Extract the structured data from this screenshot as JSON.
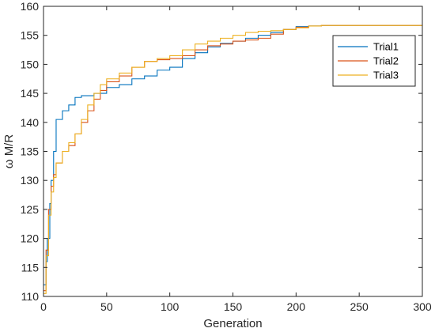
{
  "chart_data": {
    "type": "line",
    "title": "",
    "xlabel": "Generation",
    "ylabel": "ω M/R",
    "xlim": [
      0,
      300
    ],
    "ylim": [
      110,
      160
    ],
    "xticks": [
      0,
      50,
      100,
      150,
      200,
      250,
      300
    ],
    "yticks": [
      110,
      115,
      120,
      125,
      130,
      135,
      140,
      145,
      150,
      155,
      160
    ],
    "grid": false,
    "legend_position": "top-right",
    "series": [
      {
        "name": "Trial1",
        "color": "#0072BD",
        "x": [
          0,
          2,
          3,
          5,
          6,
          8,
          10,
          15,
          20,
          25,
          30,
          40,
          50,
          60,
          70,
          80,
          90,
          100,
          110,
          120,
          130,
          140,
          150,
          160,
          170,
          180,
          190,
          200,
          210,
          220,
          250,
          300
        ],
        "y": [
          112,
          116,
          120,
          126,
          130,
          135,
          140.5,
          142,
          143,
          144.3,
          144.6,
          145,
          146,
          146.5,
          147.5,
          148,
          149,
          149.5,
          151,
          152,
          153,
          153.6,
          154,
          154.5,
          155,
          155.5,
          156,
          156.5,
          156.6,
          156.7,
          156.7,
          156.7
        ]
      },
      {
        "name": "Trial2",
        "color": "#D95319",
        "x": [
          0,
          2,
          4,
          6,
          8,
          10,
          15,
          20,
          25,
          30,
          35,
          40,
          45,
          50,
          60,
          70,
          80,
          90,
          100,
          110,
          120,
          130,
          140,
          150,
          160,
          170,
          180,
          190,
          200,
          210,
          220,
          250,
          300
        ],
        "y": [
          111,
          118,
          125,
          129,
          131,
          133,
          135,
          136,
          138,
          140,
          142,
          144,
          145.5,
          147,
          148,
          149.5,
          150.5,
          150.8,
          151,
          151.5,
          152.5,
          153.2,
          153.5,
          154,
          154.2,
          154.5,
          155.2,
          156,
          156.4,
          156.6,
          156.7,
          156.7,
          156.7
        ]
      },
      {
        "name": "Trial3",
        "color": "#EDB120",
        "x": [
          0,
          2,
          4,
          6,
          8,
          10,
          15,
          20,
          25,
          30,
          35,
          40,
          45,
          50,
          60,
          70,
          80,
          90,
          100,
          110,
          120,
          130,
          140,
          150,
          160,
          170,
          180,
          190,
          200,
          210,
          220,
          250,
          300
        ],
        "y": [
          110.5,
          117,
          124,
          128,
          130.5,
          133,
          135,
          136.5,
          138,
          140.5,
          143,
          145,
          146.5,
          147.5,
          148.5,
          149.5,
          150.5,
          151,
          151.5,
          152.5,
          153.5,
          154,
          154.5,
          155,
          155.5,
          155.7,
          155.8,
          156,
          156.3,
          156.6,
          156.7,
          156.7,
          156.7
        ]
      }
    ]
  }
}
